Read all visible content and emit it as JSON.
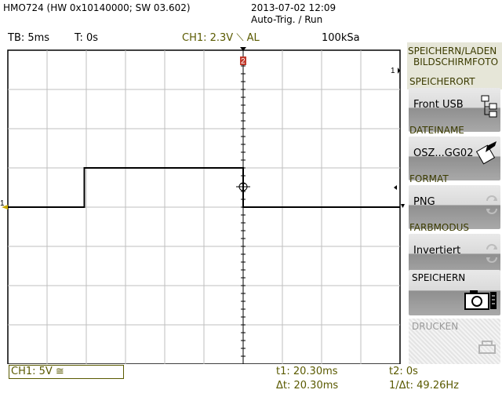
{
  "header": {
    "device": "HMO724 (HW 0x10140000; SW 03.602)",
    "datetime": "2013-07-02 12:09",
    "mode": "Auto-Trig. / Run"
  },
  "status_bar": {
    "timebase": "TB: 5ms",
    "trigger_time": "T: 0s",
    "channel_trigger": "CH1: 2.3V ⟍ AL",
    "sample_rate": "100kSa"
  },
  "marker": "2",
  "side_menu": {
    "title_line1": "SPEICHERN/LADEN",
    "title_line2": "BILDSCHIRMFOTO",
    "storage_label": "SPEICHERORT",
    "storage_value": "Front USB",
    "filename_label": "DATEINAME",
    "filename_value": "OSZ...GG02",
    "format_label": "FORMAT",
    "format_value": "PNG",
    "colormode_label": "FARBMODUS",
    "colormode_value": "Invertiert",
    "save_label": "SPEICHERN",
    "print_label": "DRUCKEN"
  },
  "bottom": {
    "ch1_scale": "CH1: 5V ≅",
    "t1": "t1: 20.30ms",
    "t2": "t2: 0s",
    "dt": "Δt: 20.30ms",
    "inv_dt": "1/Δt: 49.26Hz"
  },
  "ch1_marker": "1",
  "ref_marker": "1",
  "waveform": {
    "type": "line",
    "xlabel": "",
    "ylabel": "",
    "x_unit": "div",
    "y_unit": "div",
    "xlim": [
      0,
      10
    ],
    "ylim": [
      -4,
      4
    ],
    "points": [
      [
        0,
        0
      ],
      [
        1.95,
        0
      ],
      [
        1.95,
        1
      ],
      [
        6.0,
        1
      ],
      [
        6.0,
        0
      ],
      [
        10,
        0
      ]
    ],
    "color": "#000000",
    "grid": true
  },
  "colors": {
    "accent": "#5a5a00",
    "marker": "#c0392b",
    "grid": "#bfbfbf",
    "frame": "#000000"
  }
}
